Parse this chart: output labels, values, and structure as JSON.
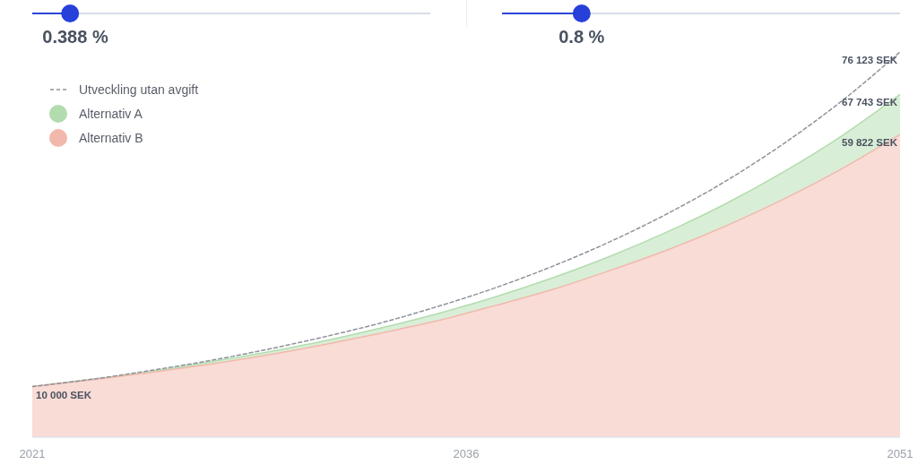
{
  "chart_data": {
    "type": "area",
    "x": [
      2021,
      2023,
      2025,
      2027,
      2029,
      2031,
      2033,
      2035,
      2037,
      2039,
      2041,
      2043,
      2045,
      2047,
      2049,
      2051
    ],
    "xlim": [
      2021,
      2051
    ],
    "xticks": [
      2021,
      2036,
      2051
    ],
    "tick_labels": "x",
    "legend": "top left",
    "marker": "none",
    "series": [
      {
        "name": "Utveckling utan avgift",
        "type": "line",
        "line_style": "dashed",
        "color": "#8e929a",
        "values": [
          10000,
          11400,
          13100,
          15000,
          17200,
          19700,
          22500,
          25800,
          29500,
          33800,
          38700,
          44300,
          50700,
          58100,
          66500,
          76123
        ],
        "value_labels": [
          null,
          null,
          null,
          null,
          null,
          null,
          null,
          null,
          null,
          null,
          null,
          null,
          null,
          null,
          null,
          "76 123 SEK"
        ]
      },
      {
        "name": "Alternativ A",
        "color": "#b3dcae",
        "values": [
          10000,
          11400,
          12900,
          14700,
          16700,
          18900,
          21500,
          24400,
          27700,
          31500,
          35800,
          40700,
          46200,
          52500,
          59600,
          67743
        ],
        "value_labels": [
          null,
          null,
          null,
          null,
          null,
          null,
          null,
          null,
          null,
          null,
          null,
          null,
          null,
          null,
          null,
          "67 743 SEK"
        ]
      },
      {
        "name": "Alternativ B",
        "color": "#f2b8ac",
        "values": [
          10000,
          11300,
          12700,
          14300,
          16100,
          18200,
          20500,
          23000,
          26000,
          29200,
          33000,
          37100,
          41800,
          47100,
          53100,
          59822
        ],
        "value_labels": [
          "10 000 SEK",
          null,
          null,
          null,
          null,
          null,
          null,
          null,
          null,
          null,
          null,
          null,
          null,
          null,
          null,
          "59 822 SEK"
        ]
      }
    ],
    "annotations": [
      "0.388 %",
      "0.8 %"
    ]
  }
}
